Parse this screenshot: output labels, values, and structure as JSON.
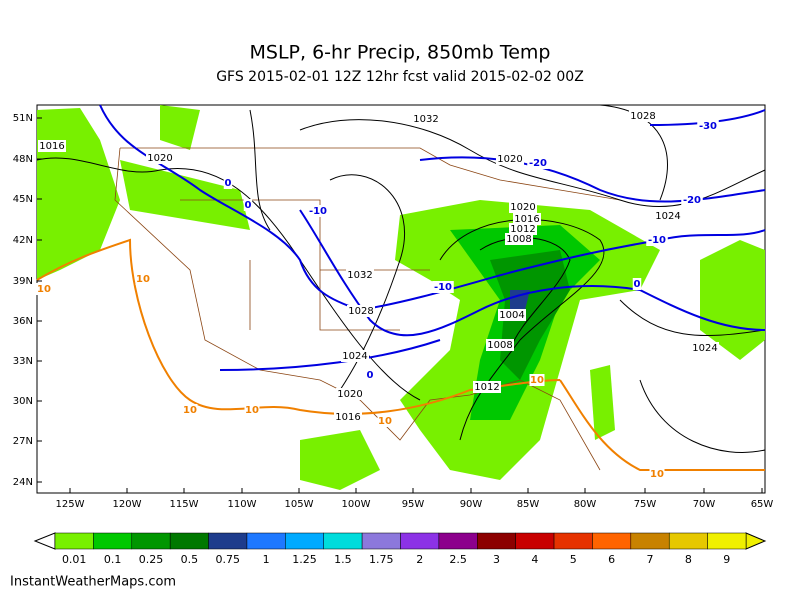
{
  "header": {
    "title": "MSLP, 6-hr Precip, 850mb Temp",
    "subtitle": "GFS 2015-02-01 12Z 12hr fcst valid 2015-02-02 00Z"
  },
  "lat_labels": [
    "51N",
    "48N",
    "45N",
    "42N",
    "39N",
    "36N",
    "33N",
    "30N",
    "27N",
    "24N"
  ],
  "lon_labels": [
    "125W",
    "120W",
    "115W",
    "110W",
    "105W",
    "100W",
    "95W",
    "90W",
    "85W",
    "80W",
    "75W",
    "70W",
    "65W"
  ],
  "contour_labels": [
    {
      "text": "1016",
      "color": "#000"
    },
    {
      "text": "1020",
      "color": "#000"
    },
    {
      "text": "1032",
      "color": "#000"
    },
    {
      "text": "1028",
      "color": "#000"
    },
    {
      "text": "-30",
      "color": "#0000e0"
    },
    {
      "text": "1020",
      "color": "#000"
    },
    {
      "text": "-20",
      "color": "#0000e0"
    },
    {
      "text": "-20",
      "color": "#0000e0"
    },
    {
      "text": "1020",
      "color": "#000"
    },
    {
      "text": "1016",
      "color": "#000"
    },
    {
      "text": "1012",
      "color": "#000"
    },
    {
      "text": "1008",
      "color": "#000"
    },
    {
      "text": "1024",
      "color": "#000"
    },
    {
      "text": "-10",
      "color": "#0000e0"
    },
    {
      "text": "-10",
      "color": "#0000e0"
    },
    {
      "text": "0",
      "color": "#0000e0"
    },
    {
      "text": "0",
      "color": "#0000e0"
    },
    {
      "text": "1032",
      "color": "#000"
    },
    {
      "text": "-10",
      "color": "#0000e0"
    },
    {
      "text": "1028",
      "color": "#000"
    },
    {
      "text": "1004",
      "color": "#000"
    },
    {
      "text": "0",
      "color": "#0000e0"
    },
    {
      "text": "1008",
      "color": "#000"
    },
    {
      "text": "1024",
      "color": "#000"
    },
    {
      "text": "1024",
      "color": "#000"
    },
    {
      "text": "0",
      "color": "#0000e0"
    },
    {
      "text": "1020",
      "color": "#000"
    },
    {
      "text": "1012",
      "color": "#000"
    },
    {
      "text": "10",
      "color": "#f08000"
    },
    {
      "text": "1016",
      "color": "#000"
    },
    {
      "text": "10",
      "color": "#f08000"
    },
    {
      "text": "10",
      "color": "#f08000"
    },
    {
      "text": "10",
      "color": "#f08000"
    },
    {
      "text": "10",
      "color": "#f08000"
    },
    {
      "text": "10",
      "color": "#f08000"
    },
    {
      "text": "10",
      "color": "#f08000"
    }
  ],
  "colorbar": {
    "labels": [
      "0.01",
      "0.1",
      "0.25",
      "0.5",
      "0.75",
      "1",
      "1.25",
      "1.5",
      "1.75",
      "2",
      "2.5",
      "3",
      "4",
      "5",
      "6",
      "7",
      "8",
      "9"
    ],
    "colors": [
      "#78f000",
      "#00c800",
      "#009600",
      "#007800",
      "#1e3c8c",
      "#1e78ff",
      "#00aaff",
      "#00dcdc",
      "#8c78dc",
      "#8c32e6",
      "#8c008c",
      "#8c0000",
      "#c80000",
      "#e63200",
      "#ff6400",
      "#c88200",
      "#e6c800",
      "#f0f000"
    ]
  },
  "credit": "InstantWeatherMaps.com"
}
